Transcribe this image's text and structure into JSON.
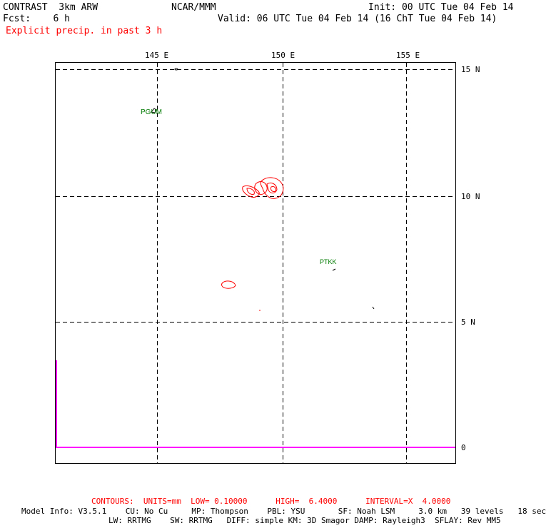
{
  "header": {
    "model": "CONTRAST  3km ARW",
    "org": "NCAR/MMM",
    "init": "Init: 00 UTC Tue 04 Feb 14",
    "fcst": "Fcst:    6 h",
    "valid": "Valid: 06 UTC Tue 04 Feb 14 (16 ChT Tue 04 Feb 14)",
    "field": "Explicit precip. in past 3 h"
  },
  "map": {
    "lon_labels": [
      "145 E",
      "150 E",
      "155 E"
    ],
    "lat_labels": [
      "15 N",
      "10 N",
      "5 N"
    ],
    "zero_label": "0",
    "stations": [
      {
        "name": "PGUM",
        "lon": 144.8,
        "lat": 13.5
      },
      {
        "name": "PTKK",
        "lon": 151.8,
        "lat": 7.4
      }
    ],
    "colors": {
      "precip_contour": "#ff0000",
      "station": "#007a00",
      "grid": "#000000",
      "timeseries": "#ff00ff"
    }
  },
  "footer": {
    "contours": "CONTOURS:  UNITS=mm  LOW= 0.10000      HIGH=  6.4000      INTERVAL=X  4.0000",
    "info1": "Model Info: V3.5.1    CU: No Cu     MP: Thompson    PBL: YSU       SF: Noah LSM     3.0 km   39 levels   18 sec",
    "info2": "LW: RRTMG    SW: RRTMG   DIFF: simple KM: 3D Smagor DAMP: Rayleigh3  SFLAY: Rev MM5"
  }
}
